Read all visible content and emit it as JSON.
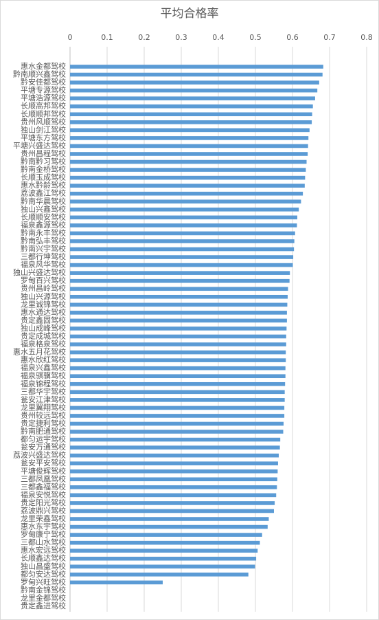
{
  "chart_data": {
    "type": "barh",
    "title": "平均合格率",
    "categories": [
      "惠水金都驾校",
      "黔南顺兴鑫驾校",
      "黔安佳都驾校",
      "平塘专源驾校",
      "平塘浩源驾校",
      "长顺高邦驾校",
      "长顺顺邦驾校",
      "贵州风顺驾校",
      "独山剑江驾校",
      "平塘东方驾校",
      "平塘兴盛达驾校",
      "贵州昌程驾校",
      "黔南黔习驾校",
      "黔南金桥驾校",
      "长顺玉成驾校",
      "惠水黔龄驾校",
      "荔波鑫江驾校",
      "黔南华晨驾校",
      "独山兴鑫驾校",
      "长顺顺安驾校",
      "福泉鑫源驾校",
      "黔南永丰驾校",
      "黔南弘丰驾校",
      "黔南兴宇驾校",
      "三都行坤驾校",
      "福泉风华驾校",
      "独山兴盛达驾校",
      "罗甸百兴驾校",
      "贵州昌岭驾校",
      "独山兴源驾校",
      "龙里诚锦驾校",
      "惠水通达驾校",
      "贵定鑫固驾校",
      "独山成峰驾校",
      "贵定成城驾校",
      "福泉格泉驾校",
      "惠水五月花驾校",
      "惠水欣红驾校",
      "福泉兴鑫驾校",
      "福泉骐骥驾校",
      "福泉锦程驾校",
      "三都华宇驾校",
      "瓮安江津驾校",
      "龙里翼翔驾校",
      "贵州较远驾校",
      "贵定捷利驾校",
      "黔南肥通驾校",
      "都匀运宇驾校",
      "瓮安万通驾校",
      "荔波兴盛达驾校",
      "瓮安平安驾校",
      "平塘俊辉驾校",
      "三都凤凰驾校",
      "三都鑫福驾校",
      "福泉安悦驾校",
      "贵定阳光驾校",
      "荔波鼎兴驾校",
      "龙里荣鑫驾校",
      "惠水东宇驾校",
      "罗甸康宁驾校",
      "三都山水驾校",
      "惠水宏远驾校",
      "长顺鑫达驾校",
      "独山昌盛驾校",
      "都匀安达驾校",
      "罗甸兴旺驾校",
      "黔南金锦驾校",
      "龙里金都驾校",
      "贵定鑫进驾校"
    ],
    "values": [
      0.683,
      0.681,
      0.672,
      0.667,
      0.661,
      0.655,
      0.653,
      0.652,
      0.646,
      0.643,
      0.642,
      0.641,
      0.638,
      0.636,
      0.634,
      0.633,
      0.628,
      0.623,
      0.617,
      0.613,
      0.612,
      0.607,
      0.605,
      0.604,
      0.602,
      0.601,
      0.593,
      0.592,
      0.588,
      0.587,
      0.586,
      0.585,
      0.585,
      0.584,
      0.583,
      0.583,
      0.582,
      0.582,
      0.581,
      0.581,
      0.58,
      0.579,
      0.579,
      0.578,
      0.578,
      0.576,
      0.575,
      0.567,
      0.566,
      0.563,
      0.561,
      0.56,
      0.559,
      0.558,
      0.556,
      0.552,
      0.55,
      0.536,
      0.533,
      0.518,
      0.512,
      0.506,
      0.502,
      0.499,
      0.481,
      0.25,
      null,
      null,
      null
    ],
    "color": "#5b9bd5",
    "xlim": [
      0,
      0.8
    ],
    "xticks": [
      0,
      0.1,
      0.2,
      0.3,
      0.4,
      0.5,
      0.6,
      0.7,
      0.8
    ],
    "grid": true
  }
}
